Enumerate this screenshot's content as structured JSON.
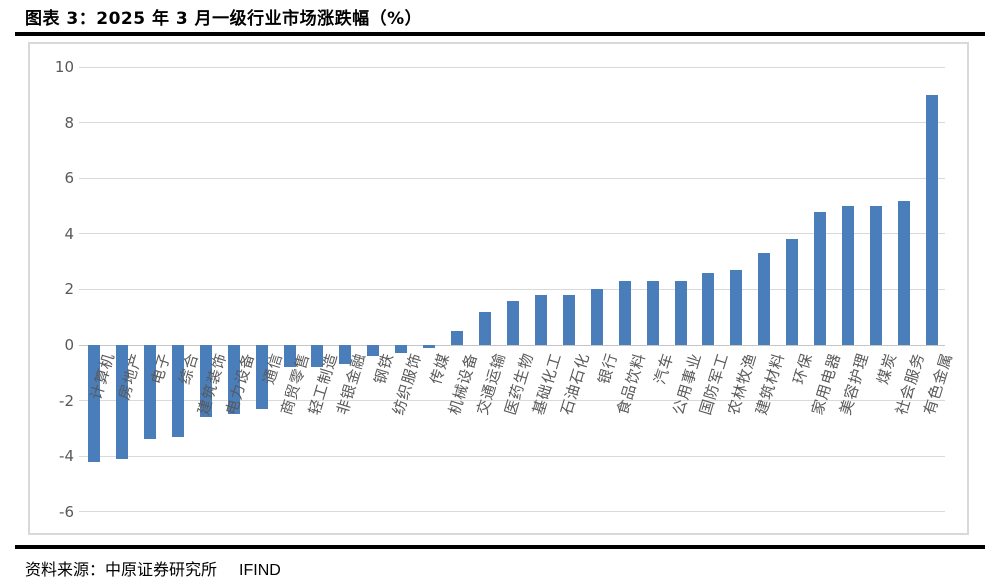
{
  "header": {
    "title": "图表 3：2025 年 3 月一级行业市场涨跌幅（%）"
  },
  "footer": {
    "source_label": "资料来源：",
    "source": "中原证券研究所",
    "dataset": "IFIND"
  },
  "colors": {
    "bar": "#4A7EBB",
    "grid": "#D9D9D9",
    "zero_line": "#C6C6C6",
    "axis_text": "#595959",
    "frame_border": "#D9D9D9",
    "rule": "#000000"
  },
  "chart_data": {
    "type": "bar",
    "title": "图表 3：2025 年 3 月一级行业市场涨跌幅（%）",
    "xlabel": "",
    "ylabel": "",
    "ylim": [
      -6,
      10
    ],
    "yticks": [
      10,
      8,
      6,
      4,
      2,
      0,
      -2,
      -4,
      -6
    ],
    "grid": true,
    "legend": false,
    "categories": [
      "计算机",
      "房地产",
      "电子",
      "综合",
      "建筑装饰",
      "电力设备",
      "通信",
      "商贸零售",
      "轻工制造",
      "非银金融",
      "钢铁",
      "纺织服饰",
      "传媒",
      "机械设备",
      "交通运输",
      "医药生物",
      "基础化工",
      "石油石化",
      "银行",
      "食品饮料",
      "汽车",
      "公用事业",
      "国防军工",
      "农林牧渔",
      "建筑材料",
      "环保",
      "家用电器",
      "美容护理",
      "煤炭",
      "社会服务",
      "有色金属"
    ],
    "values": [
      -4.2,
      -4.1,
      -3.4,
      -3.3,
      -2.6,
      -2.5,
      -2.3,
      -0.8,
      -0.8,
      -0.7,
      -0.4,
      -0.3,
      -0.1,
      0.5,
      1.2,
      1.6,
      1.8,
      1.8,
      2.0,
      2.3,
      2.3,
      2.3,
      2.6,
      2.7,
      3.3,
      3.8,
      4.8,
      5.0,
      5.0,
      5.2,
      9.0
    ]
  }
}
